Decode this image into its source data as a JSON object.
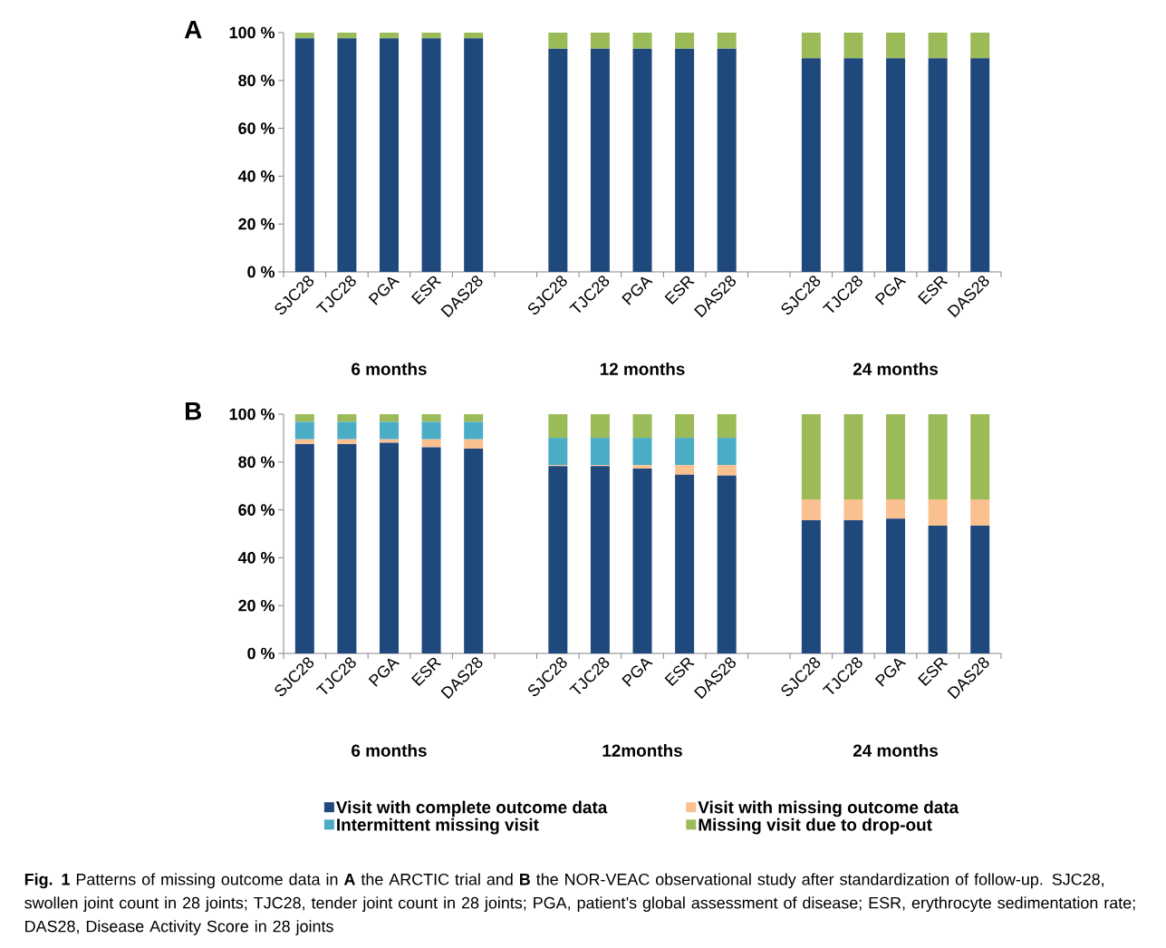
{
  "chart_data": [
    {
      "type": "bar",
      "title": "A",
      "stacked": true,
      "categories": [
        "SJC28",
        "TJC28",
        "PGA",
        "ESR",
        "DAS28",
        null,
        "SJC28",
        "TJC28",
        "PGA",
        "ESR",
        "DAS28",
        null,
        "SJC28",
        "TJC28",
        "PGA",
        "ESR",
        "DAS28"
      ],
      "series": [
        {
          "color": "#1f497d",
          "values": [
            97.6,
            97.6,
            97.6,
            97.6,
            97.6,
            null,
            93.3,
            93.3,
            93.3,
            93.3,
            93.3,
            null,
            89.3,
            89.3,
            89.3,
            89.3,
            89.3
          ]
        },
        {
          "color": "#9bbb59",
          "values": [
            2.4,
            2.4,
            2.4,
            2.4,
            2.4,
            null,
            6.7,
            6.7,
            6.7,
            6.7,
            6.7,
            null,
            10.7,
            10.7,
            10.7,
            10.7,
            10.7
          ]
        }
      ],
      "ylim": [
        0,
        100
      ],
      "yticks": [
        {
          "value": 0,
          "label": "0 %"
        },
        {
          "value": 20,
          "label": "20 %"
        },
        {
          "value": 40,
          "label": "40 %"
        },
        {
          "value": 60,
          "label": "60 %"
        },
        {
          "value": 80,
          "label": "80 %"
        },
        {
          "value": 100,
          "label": "100 %"
        }
      ],
      "annotations": [
        "6 months",
        "12 months",
        "24 months"
      ]
    },
    {
      "type": "bar",
      "title": "B",
      "stacked": true,
      "legend": "bottom",
      "categories": [
        "SJC28",
        "TJC28",
        "PGA",
        "ESR",
        "DAS28",
        null,
        "SJC28",
        "TJC28",
        "PGA",
        "ESR",
        "DAS28",
        null,
        "SJC28",
        "TJC28",
        "PGA",
        "ESR",
        "DAS28"
      ],
      "series": [
        {
          "name": "Visit with complete outcome data",
          "color": "#1f497d",
          "values": [
            87.5,
            87.5,
            88.1,
            86.2,
            85.6,
            null,
            78.3,
            78.3,
            77.3,
            74.7,
            74.3,
            null,
            55.7,
            55.7,
            56.3,
            53.4,
            53.4
          ]
        },
        {
          "name": "Visit with missing outcome data",
          "color": "#fac090",
          "values": [
            2.0,
            2.0,
            1.4,
            3.3,
            3.9,
            null,
            0.4,
            0.4,
            1.4,
            4.0,
            4.4,
            null,
            8.7,
            8.7,
            8.1,
            11.0,
            11.0
          ]
        },
        {
          "name": "Intermittent missing visit",
          "color": "#4bacc6",
          "values": [
            7.3,
            7.3,
            7.3,
            7.3,
            7.3,
            null,
            11.4,
            11.4,
            11.4,
            11.4,
            11.4,
            null,
            0,
            0,
            0,
            0,
            0
          ]
        },
        {
          "name": "Missing visit due to drop-out",
          "color": "#9bbb59",
          "values": [
            3.2,
            3.2,
            3.2,
            3.2,
            3.2,
            null,
            9.9,
            9.9,
            9.9,
            9.9,
            9.9,
            null,
            35.6,
            35.6,
            35.6,
            35.6,
            35.6
          ]
        }
      ],
      "ylim": [
        0,
        100
      ],
      "yticks": [
        {
          "value": 0,
          "label": "0 %"
        },
        {
          "value": 20,
          "label": "20 %"
        },
        {
          "value": 40,
          "label": "40 %"
        },
        {
          "value": 60,
          "label": "60 %"
        },
        {
          "value": 80,
          "label": "80 %"
        },
        {
          "value": 100,
          "label": "100 %"
        }
      ],
      "annotations": [
        "6 months",
        "12months",
        "24 months",
        "**Fig. 1** Patterns of missing outcome data in **A** the ARCTIC trial and **B** the NOR-VEAC observational study after standardization of follow-up. SJC28, swollen joint count in 28 joints; TJC28, tender joint count in 28 joints; PGA, patient’s global assessment of disease; ESR, erythrocyte sedimentation rate; DAS28, Disease Activity Score in 28 joints"
      ]
    }
  ]
}
